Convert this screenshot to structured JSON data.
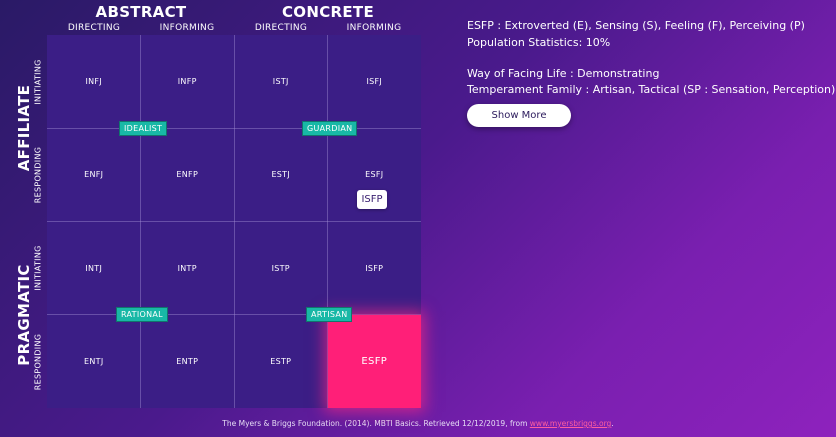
{
  "headers": {
    "abstract": "ABSTRACT",
    "concrete": "CONCRETE",
    "columns": [
      "DIRECTING",
      "INFORMING",
      "DIRECTING",
      "INFORMING"
    ],
    "affiliate": "AFFILIATE",
    "pragmatic": "PRAGMATIC",
    "rows": [
      "INITIATING",
      "RESPONDING",
      "INITIATING",
      "RESPONDING"
    ]
  },
  "grid": {
    "rows": [
      [
        "INFJ",
        "INFP",
        "ISTJ",
        "ISFJ"
      ],
      [
        "ENFJ",
        "ENFP",
        "ESTJ",
        "ESFJ"
      ],
      [
        "INTJ",
        "INTP",
        "ISTP",
        "ISFP"
      ],
      [
        "ENTJ",
        "ENTP",
        "ESTP",
        "ESFP"
      ]
    ],
    "active": "ESFP",
    "active_color": "#ff1f78"
  },
  "temperaments": {
    "idealist": "IDEALIST",
    "guardian": "GUARDIAN",
    "rational": "RATIONAL",
    "artisan": "ARTISAN",
    "tag_color": "#18b8a6"
  },
  "floating_tag": "ISFP",
  "info": {
    "line1": "ESFP : Extroverted (E), Sensing (S), Feeling (F), Perceiving (P)",
    "line2": "Population Statistics: 10%",
    "line3": "Way of Facing Life : Demonstrating",
    "line4": "Temperament Family : Artisan, Tactical (SP : Sensation, Perception)"
  },
  "show_more_label": "Show More",
  "footer": {
    "text": "The Myers & Briggs Foundation. (2014). MBTI Basics. Retrieved 12/12/2019, from ",
    "link": "www.myersbriggs.org",
    "end": "."
  }
}
